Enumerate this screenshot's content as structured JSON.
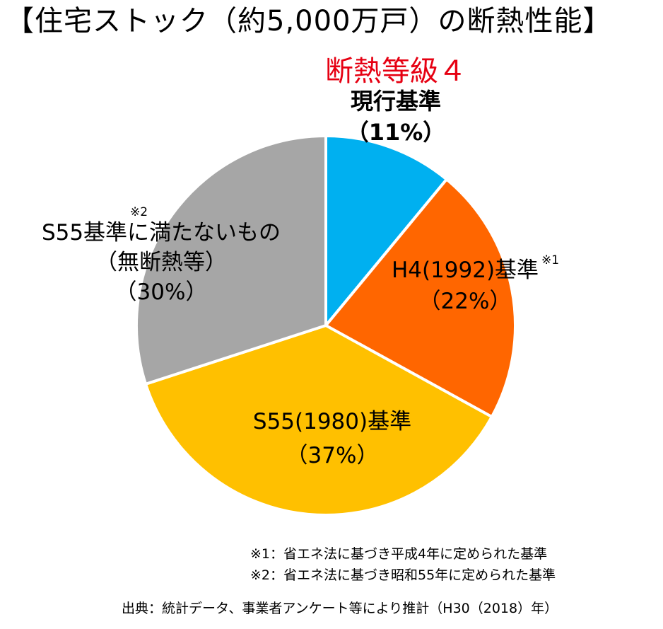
{
  "title": "【住宅ストック（約5,000万戸）の断熱性能】",
  "chart_data": {
    "type": "pie",
    "title": "【住宅ストック（約5,000万戸）の断熱性能】",
    "slices": [
      {
        "id": "current",
        "grade_label": "断熱等級４",
        "label": "現行基準",
        "value": 11,
        "value_text": "（11%）",
        "color": "#00b0f0"
      },
      {
        "id": "h4",
        "label": "H4(1992)基準",
        "marker": "※1",
        "value": 22,
        "value_text": "（22%）",
        "color": "#ff6600"
      },
      {
        "id": "s55",
        "label": "S55(1980)基準",
        "value": 37,
        "value_text": "（37%）",
        "color": "#ffc000"
      },
      {
        "id": "below_s55",
        "label": "S55基準に満たないもの",
        "sublabel": "（無断熱等）",
        "marker": "※2",
        "value": 30,
        "value_text": "（30%）",
        "color": "#a6a6a6"
      }
    ],
    "start_angle": "12 o'clock",
    "direction": "clockwise",
    "slice_border_color": "#ffffff"
  },
  "notes": [
    "※1：省エネ法に基づき平成4年に定められた基準",
    "※2：省エネ法に基づき昭和55年に定められた基準"
  ],
  "source": "出典：統計データ、事業者アンケート等により推計（H30（2018）年）"
}
